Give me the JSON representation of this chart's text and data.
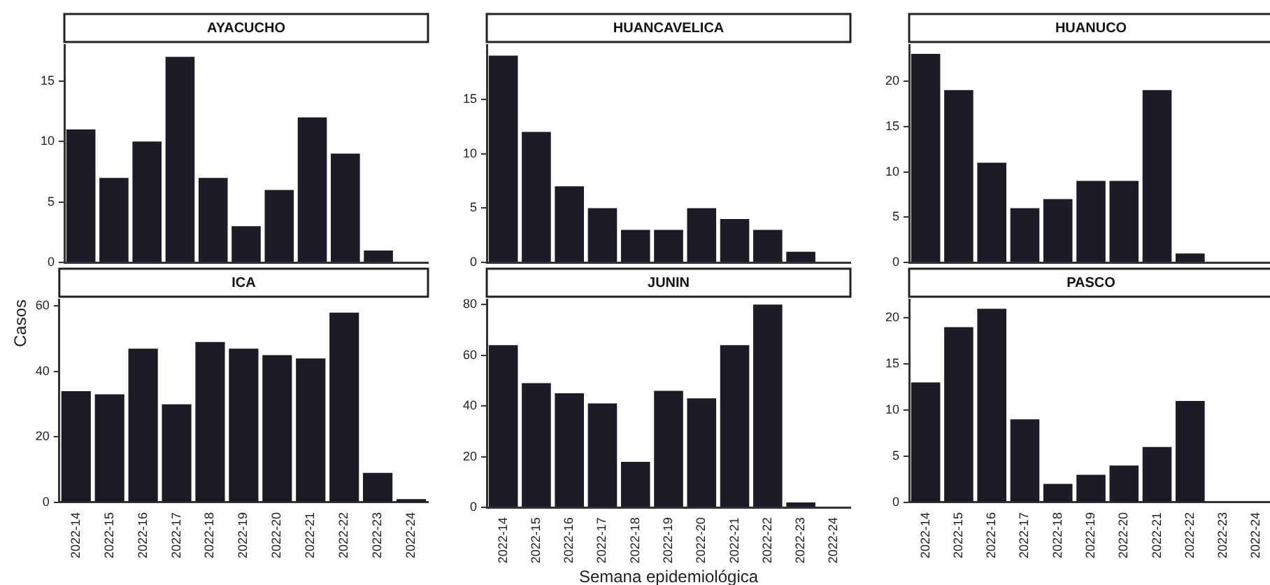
{
  "chart_data": [
    {
      "type": "bar",
      "title": "AYACUCHO",
      "categories": [
        "2022-14",
        "2022-15",
        "2022-16",
        "2022-17",
        "2022-18",
        "2022-19",
        "2022-20",
        "2022-21",
        "2022-22",
        "2022-23",
        "2022-24"
      ],
      "values": [
        11,
        7,
        10,
        17,
        7,
        3,
        6,
        12,
        9,
        1,
        0
      ],
      "color": "#1c1c26",
      "ylim": [
        0,
        18
      ],
      "yticks": [
        0,
        5,
        10,
        15
      ],
      "grid": false,
      "tick_labels": "y"
    },
    {
      "type": "bar",
      "title": "HUANCAVELICA",
      "categories": [
        "2022-14",
        "2022-15",
        "2022-16",
        "2022-17",
        "2022-18",
        "2022-19",
        "2022-20",
        "2022-21",
        "2022-22",
        "2022-23",
        "2022-24"
      ],
      "values": [
        19,
        12,
        7,
        5,
        3,
        3,
        5,
        4,
        3,
        1,
        0
      ],
      "color": "#1c1c26",
      "ylim": [
        0,
        20
      ],
      "yticks": [
        0,
        5,
        10,
        15
      ],
      "grid": false,
      "tick_labels": "y"
    },
    {
      "type": "bar",
      "title": "HUANUCO",
      "categories": [
        "2022-14",
        "2022-15",
        "2022-16",
        "2022-17",
        "2022-18",
        "2022-19",
        "2022-20",
        "2022-21",
        "2022-22",
        "2022-23",
        "2022-24"
      ],
      "values": [
        23,
        19,
        11,
        6,
        7,
        9,
        9,
        19,
        1,
        0,
        0
      ],
      "color": "#1c1c26",
      "ylim": [
        0,
        24
      ],
      "yticks": [
        0,
        5,
        10,
        15,
        20
      ],
      "grid": false,
      "tick_labels": "y"
    },
    {
      "type": "bar",
      "title": "ICA",
      "ylabel": "Casos",
      "categories": [
        "2022-14",
        "2022-15",
        "2022-16",
        "2022-17",
        "2022-18",
        "2022-19",
        "2022-20",
        "2022-21",
        "2022-22",
        "2022-23",
        "2022-24"
      ],
      "values": [
        34,
        33,
        47,
        30,
        49,
        47,
        45,
        44,
        58,
        9,
        1
      ],
      "color": "#1c1c26",
      "ylim": [
        0,
        62
      ],
      "yticks": [
        0,
        20,
        40,
        60
      ],
      "grid": false
    },
    {
      "type": "bar",
      "title": "JUNIN",
      "xlabel": "Semana epidemiológica",
      "categories": [
        "2022-14",
        "2022-15",
        "2022-16",
        "2022-17",
        "2022-18",
        "2022-19",
        "2022-20",
        "2022-21",
        "2022-22",
        "2022-23",
        "2022-24"
      ],
      "values": [
        64,
        49,
        45,
        41,
        18,
        46,
        43,
        64,
        80,
        2,
        0
      ],
      "color": "#1c1c26",
      "ylim": [
        0,
        82
      ],
      "yticks": [
        0,
        20,
        40,
        60,
        80
      ],
      "grid": false
    },
    {
      "type": "bar",
      "title": "PASCO",
      "categories": [
        "2022-14",
        "2022-15",
        "2022-16",
        "2022-17",
        "2022-18",
        "2022-19",
        "2022-20",
        "2022-21",
        "2022-22",
        "2022-23",
        "2022-24"
      ],
      "values": [
        13,
        19,
        21,
        9,
        2,
        3,
        4,
        6,
        11,
        0,
        0
      ],
      "color": "#1c1c26",
      "ylim": [
        0,
        22
      ],
      "yticks": [
        0,
        5,
        10,
        15,
        20
      ],
      "grid": false
    }
  ]
}
